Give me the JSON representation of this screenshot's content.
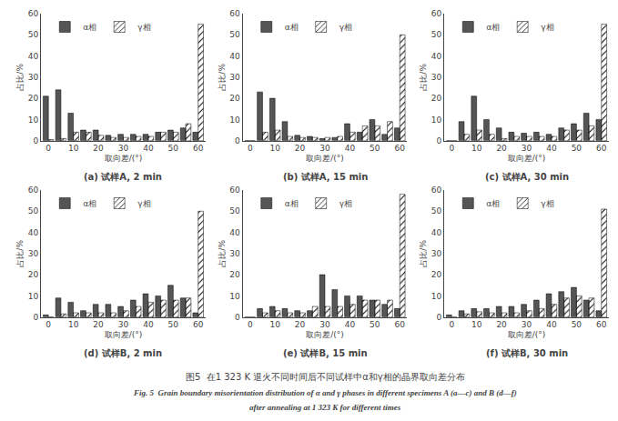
{
  "title": "图5  在1 323 K 退火不同时间后不同试样中α和γ相的晶界取向差分布",
  "annotations": [
    "Fig. 5  Grain boundary misorientation distribution of α and γ phases in different specimens A (a―c) and B (d―f)",
    "after annealing at 1 323 K for different times"
  ],
  "chart_data": [
    {
      "type": "bar",
      "title": "(a) 试样A, 2 min",
      "xlabel": "取向差/(°)",
      "ylabel": "占比/%",
      "x": [
        0,
        5,
        10,
        15,
        20,
        25,
        30,
        35,
        40,
        45,
        50,
        55,
        60
      ],
      "xlim": [
        -3,
        63
      ],
      "xticks": [
        0,
        10,
        20,
        30,
        40,
        50,
        60
      ],
      "ylim": [
        0,
        60
      ],
      "yticks": [
        0,
        10,
        20,
        30,
        40,
        50,
        60
      ],
      "grid": false,
      "legend": "upper left",
      "series": [
        {
          "name": "α相",
          "color": "#555555",
          "values": [
            21,
            24,
            13,
            5,
            5,
            2.5,
            3,
            3,
            3,
            4,
            5,
            6,
            4
          ]
        },
        {
          "name": "γ相",
          "color": "#d0d0d0",
          "values": [
            0.5,
            1,
            4,
            4,
            2.5,
            1.5,
            1.5,
            2,
            2,
            4,
            4,
            8,
            55
          ]
        }
      ]
    },
    {
      "type": "bar",
      "title": "(b) 试样A, 15 min",
      "xlabel": "取向差/(°)",
      "ylabel": "占比/%",
      "x": [
        0,
        5,
        10,
        15,
        20,
        25,
        30,
        35,
        40,
        45,
        50,
        55,
        60
      ],
      "xlim": [
        -3,
        63
      ],
      "xticks": [
        0,
        10,
        20,
        30,
        40,
        50,
        60
      ],
      "ylim": [
        0,
        60
      ],
      "yticks": [
        0,
        10,
        20,
        30,
        40,
        50,
        60
      ],
      "grid": false,
      "legend": "upper left",
      "series": [
        {
          "name": "α相",
          "color": "#555555",
          "values": [
            0,
            23,
            20,
            9,
            2.5,
            2,
            1,
            1.5,
            8,
            4,
            10,
            3,
            6
          ]
        },
        {
          "name": "γ相",
          "color": "#d0d0d0",
          "values": [
            0,
            4,
            5,
            2,
            1.5,
            1.5,
            1.5,
            2,
            4,
            7,
            7,
            9,
            50
          ]
        }
      ]
    },
    {
      "type": "bar",
      "title": "(c) 试样A, 30 min",
      "xlabel": "取向差/(°)",
      "ylabel": "占比/%",
      "x": [
        0,
        5,
        10,
        15,
        20,
        25,
        30,
        35,
        40,
        45,
        50,
        55,
        60
      ],
      "xlim": [
        -3,
        63
      ],
      "xticks": [
        0,
        10,
        20,
        30,
        40,
        50,
        60
      ],
      "ylim": [
        0,
        60
      ],
      "yticks": [
        0,
        10,
        20,
        30,
        40,
        50,
        60
      ],
      "grid": false,
      "legend": "upper left",
      "series": [
        {
          "name": "α相",
          "color": "#555555",
          "values": [
            0,
            9,
            21,
            10,
            6,
            4,
            3.5,
            4,
            3,
            6,
            8,
            13,
            10
          ]
        },
        {
          "name": "γ相",
          "color": "#d0d0d0",
          "values": [
            0,
            3,
            5,
            3,
            1,
            2,
            2,
            2,
            2,
            5,
            5,
            7,
            55
          ]
        }
      ]
    },
    {
      "type": "bar",
      "title": "(d) 试样B, 2 min",
      "xlabel": "取向差/(°)",
      "ylabel": "占比/%",
      "x": [
        0,
        5,
        10,
        15,
        20,
        25,
        30,
        35,
        40,
        45,
        50,
        55,
        60
      ],
      "xlim": [
        -3,
        63
      ],
      "xticks": [
        0,
        10,
        20,
        30,
        40,
        50,
        60
      ],
      "ylim": [
        0,
        60
      ],
      "yticks": [
        0,
        10,
        20,
        30,
        40,
        50,
        60
      ],
      "grid": false,
      "legend": "upper left",
      "series": [
        {
          "name": "α相",
          "color": "#555555",
          "values": [
            1,
            9,
            7,
            3,
            6,
            6,
            5,
            8,
            11,
            10,
            15,
            9,
            2
          ]
        },
        {
          "name": "γ相",
          "color": "#d0d0d0",
          "values": [
            0,
            1.5,
            2,
            2,
            2,
            2,
            3,
            5,
            7,
            8,
            8,
            9,
            50
          ]
        }
      ]
    },
    {
      "type": "bar",
      "title": "(e) 试样B, 15 min",
      "xlabel": "取向差/(°)",
      "ylabel": "占比/%",
      "x": [
        0,
        5,
        10,
        15,
        20,
        25,
        30,
        35,
        40,
        45,
        50,
        55,
        60
      ],
      "xlim": [
        -3,
        63
      ],
      "xticks": [
        0,
        10,
        20,
        30,
        40,
        50,
        60
      ],
      "ylim": [
        0,
        60
      ],
      "yticks": [
        0,
        10,
        20,
        30,
        40,
        50,
        60
      ],
      "grid": false,
      "legend": "upper left",
      "series": [
        {
          "name": "α相",
          "color": "#555555",
          "values": [
            0,
            4,
            5,
            4,
            3,
            3,
            20,
            13,
            10,
            10,
            8,
            6,
            4
          ]
        },
        {
          "name": "γ相",
          "color": "#d0d0d0",
          "values": [
            0,
            2,
            3,
            2,
            2,
            5,
            5,
            5,
            6,
            8,
            8,
            8,
            58
          ]
        }
      ]
    },
    {
      "type": "bar",
      "title": "(f) 试样B, 30 min",
      "xlabel": "取向差/(°)",
      "ylabel": "占比/%",
      "x": [
        0,
        5,
        10,
        15,
        20,
        25,
        30,
        35,
        40,
        45,
        50,
        55,
        60
      ],
      "xlim": [
        -3,
        63
      ],
      "xticks": [
        0,
        10,
        20,
        30,
        40,
        50,
        60
      ],
      "ylim": [
        0,
        60
      ],
      "yticks": [
        0,
        10,
        20,
        30,
        40,
        50,
        60
      ],
      "grid": false,
      "legend": "upper left",
      "series": [
        {
          "name": "α相",
          "color": "#555555",
          "values": [
            1,
            3,
            4,
            4,
            5,
            5,
            6,
            8,
            11,
            12,
            14,
            8,
            3
          ]
        },
        {
          "name": "γ相",
          "color": "#d0d0d0",
          "values": [
            0,
            1.5,
            2.5,
            2,
            2,
            2,
            3,
            4,
            6,
            9,
            10,
            9,
            51
          ]
        }
      ]
    }
  ]
}
